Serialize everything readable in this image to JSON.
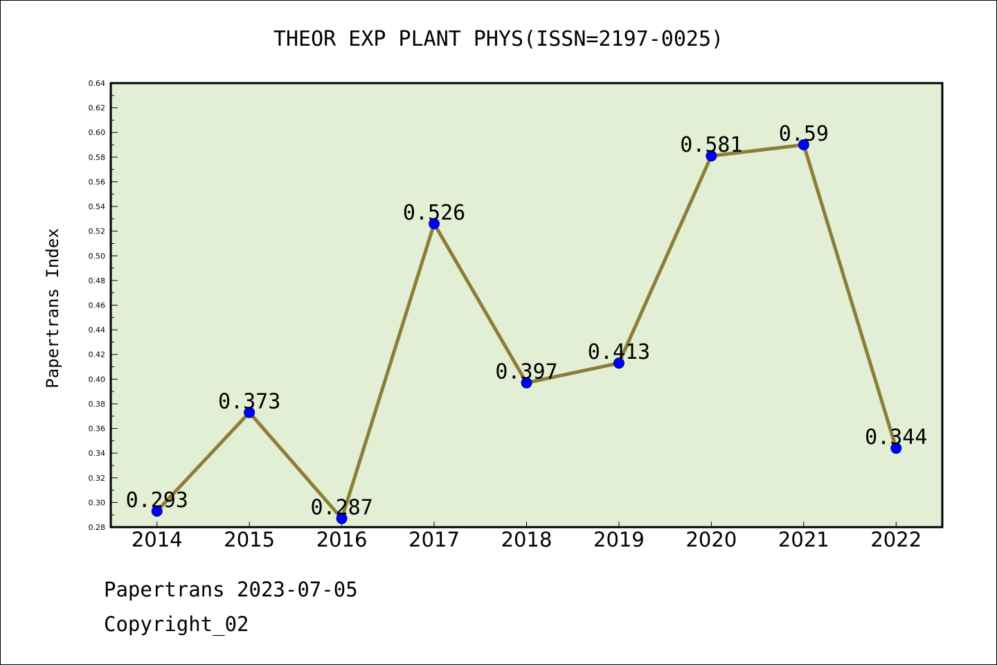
{
  "chart_data": {
    "type": "line",
    "title": "THEOR EXP PLANT PHYS(ISSN=2197-0025)",
    "xlabel": "",
    "ylabel": "Papertrans Index",
    "categories": [
      "2014",
      "2015",
      "2016",
      "2017",
      "2018",
      "2019",
      "2020",
      "2021",
      "2022"
    ],
    "values": [
      0.293,
      0.373,
      0.287,
      0.526,
      0.397,
      0.413,
      0.581,
      0.59,
      0.344
    ],
    "data_labels": [
      "0.293",
      "0.373",
      "0.287",
      "0.526",
      "0.397",
      "0.413",
      "0.581",
      "0.59",
      "0.344"
    ],
    "ylim": [
      0.28,
      0.64
    ],
    "yticks": [
      "0.28",
      "0.30",
      "0.32",
      "0.34",
      "0.36",
      "0.38",
      "0.40",
      "0.42",
      "0.44",
      "0.46",
      "0.48",
      "0.50",
      "0.52",
      "0.54",
      "0.56",
      "0.58",
      "0.60",
      "0.62",
      "0.64"
    ],
    "grid": false,
    "colors": {
      "plot_background": "#e2efd5",
      "line": "#8c7d38",
      "marker": "#0000ff"
    }
  },
  "footer": {
    "source": "Papertrans 2023-07-05",
    "copyright": "Copyright_02"
  }
}
